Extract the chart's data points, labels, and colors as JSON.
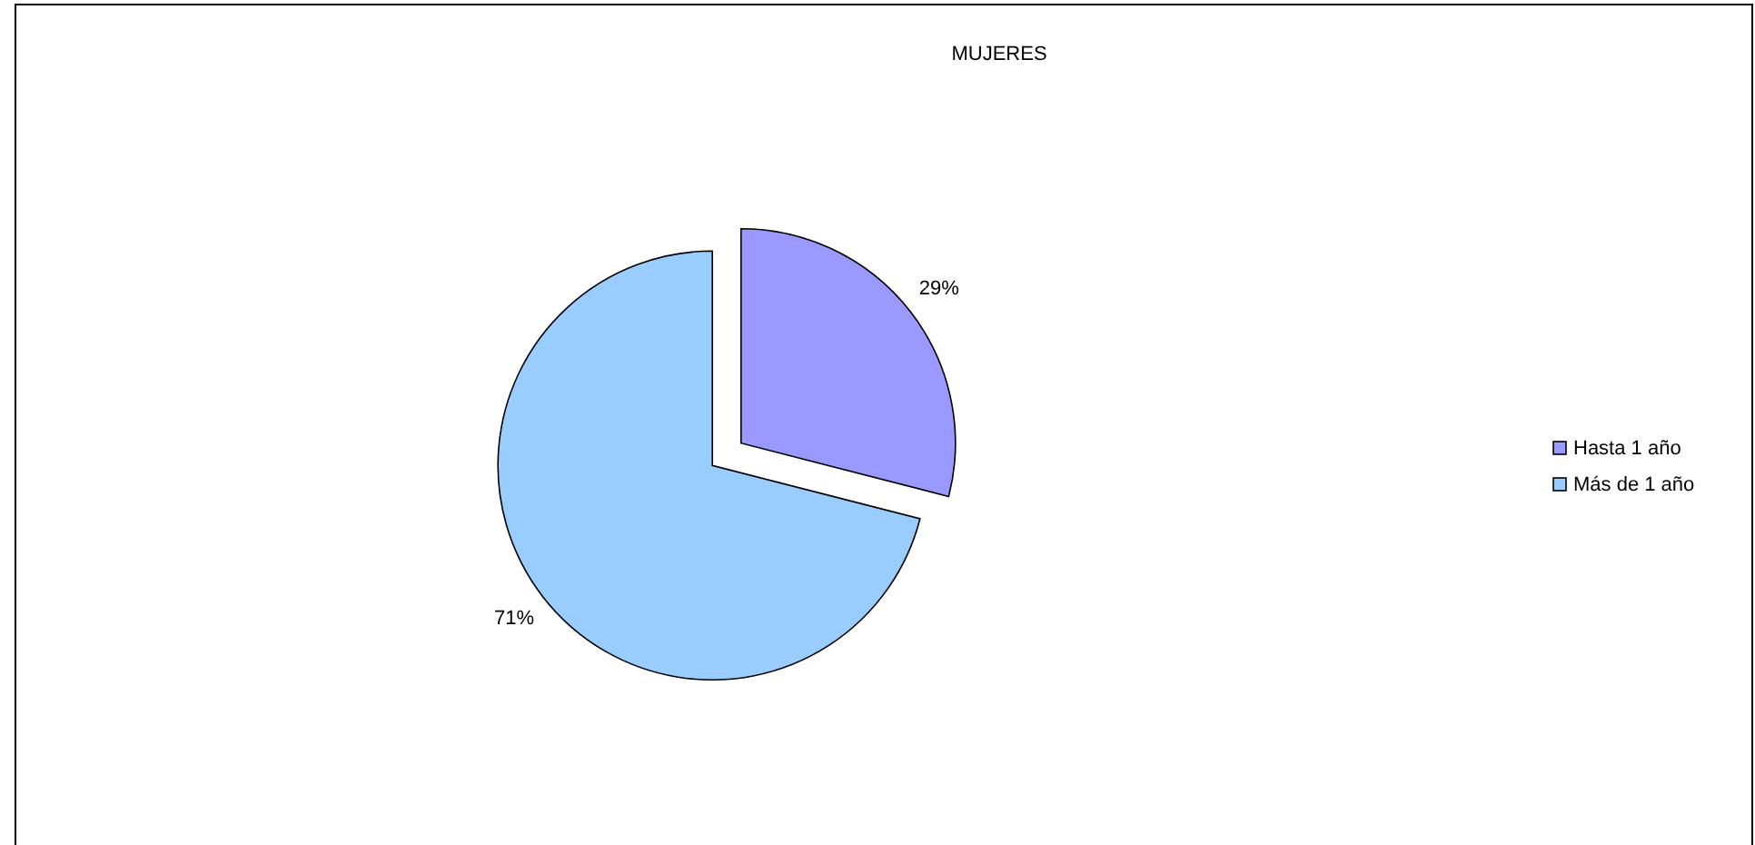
{
  "chart_data": {
    "type": "pie",
    "title": "MUJERES",
    "categories": [
      "Hasta 1 año",
      "Más de 1 año"
    ],
    "values": [
      29,
      71
    ],
    "colors": [
      "#9999ff",
      "#99ccff"
    ],
    "value_labels": [
      "29%",
      "71%"
    ],
    "legend": "right"
  }
}
